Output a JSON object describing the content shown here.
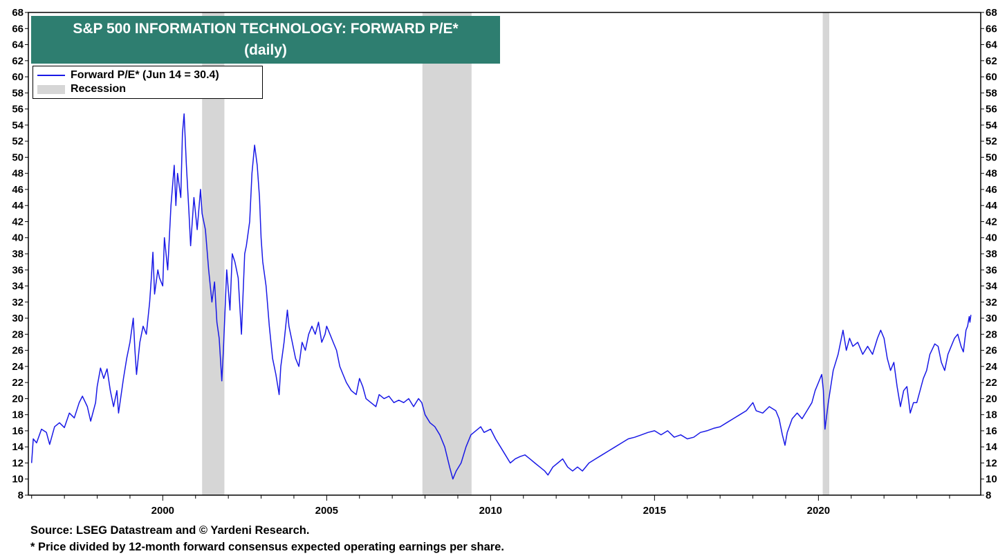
{
  "colors": {
    "series": "#1818e6",
    "recession": "#d6d6d6",
    "title_bg": "#2e7e70",
    "title_text": "#ffffff"
  },
  "title": {
    "line1": "S&P 500 INFORMATION TECHNOLOGY: FORWARD P/E*",
    "line2": "(daily)"
  },
  "legend": {
    "series_label": "Forward P/E* (Jun 14 = 30.4)",
    "recession_label": "Recession"
  },
  "footer": {
    "source": "Source: LSEG Datastream and © Yardeni Research.",
    "note": "* Price divided by 12-month forward consensus expected operating earnings per share."
  },
  "chart_data": {
    "type": "line",
    "xlim": [
      1995.9,
      2024.95
    ],
    "ylim": [
      8,
      68
    ],
    "y_ticks": [
      8,
      10,
      12,
      14,
      16,
      18,
      20,
      22,
      24,
      26,
      28,
      30,
      32,
      34,
      36,
      38,
      40,
      42,
      44,
      46,
      48,
      50,
      52,
      54,
      56,
      58,
      60,
      62,
      64,
      66,
      68
    ],
    "x_tick_labels": [
      2000,
      2005,
      2010,
      2015,
      2020
    ],
    "grid": false,
    "legend_placement": "top-left",
    "recessions": [
      [
        2001.2,
        2001.88
      ],
      [
        2007.92,
        2009.42
      ],
      [
        2020.13,
        2020.33
      ]
    ],
    "series": [
      {
        "name": "Forward P/E* (Jun 14 = 30.4)",
        "points": [
          [
            1996.0,
            12.0
          ],
          [
            1996.05,
            15.0
          ],
          [
            1996.15,
            14.5
          ],
          [
            1996.3,
            16.2
          ],
          [
            1996.45,
            15.8
          ],
          [
            1996.55,
            14.3
          ],
          [
            1996.7,
            16.5
          ],
          [
            1996.85,
            17.0
          ],
          [
            1997.0,
            16.4
          ],
          [
            1997.15,
            18.2
          ],
          [
            1997.3,
            17.6
          ],
          [
            1997.45,
            19.5
          ],
          [
            1997.55,
            20.3
          ],
          [
            1997.7,
            19.0
          ],
          [
            1997.8,
            17.2
          ],
          [
            1997.95,
            19.5
          ],
          [
            1998.0,
            21.5
          ],
          [
            1998.1,
            23.8
          ],
          [
            1998.2,
            22.5
          ],
          [
            1998.3,
            23.7
          ],
          [
            1998.4,
            21.0
          ],
          [
            1998.5,
            19.0
          ],
          [
            1998.6,
            21.0
          ],
          [
            1998.65,
            18.2
          ],
          [
            1998.8,
            22.5
          ],
          [
            1998.9,
            25.0
          ],
          [
            1999.0,
            27.0
          ],
          [
            1999.1,
            30.0
          ],
          [
            1999.15,
            26.0
          ],
          [
            1999.2,
            23.0
          ],
          [
            1999.3,
            27.0
          ],
          [
            1999.4,
            29.0
          ],
          [
            1999.5,
            28.0
          ],
          [
            1999.6,
            32.0
          ],
          [
            1999.65,
            35.0
          ],
          [
            1999.7,
            38.2
          ],
          [
            1999.75,
            33.0
          ],
          [
            1999.85,
            36.0
          ],
          [
            1999.9,
            35.0
          ],
          [
            2000.0,
            34.0
          ],
          [
            2000.05,
            40.0
          ],
          [
            2000.15,
            36.0
          ],
          [
            2000.25,
            44.0
          ],
          [
            2000.35,
            49.0
          ],
          [
            2000.4,
            44.0
          ],
          [
            2000.45,
            48.0
          ],
          [
            2000.55,
            45.0
          ],
          [
            2000.6,
            53.0
          ],
          [
            2000.65,
            55.4
          ],
          [
            2000.72,
            49.0
          ],
          [
            2000.8,
            43.0
          ],
          [
            2000.85,
            39.0
          ],
          [
            2000.95,
            45.0
          ],
          [
            2001.05,
            41.0
          ],
          [
            2001.15,
            46.0
          ],
          [
            2001.2,
            43.0
          ],
          [
            2001.3,
            41.0
          ],
          [
            2001.4,
            36.0
          ],
          [
            2001.5,
            32.0
          ],
          [
            2001.58,
            34.5
          ],
          [
            2001.65,
            29.5
          ],
          [
            2001.72,
            27.5
          ],
          [
            2001.8,
            22.2
          ],
          [
            2001.85,
            26.0
          ],
          [
            2001.95,
            36.0
          ],
          [
            2002.05,
            31.0
          ],
          [
            2002.12,
            38.0
          ],
          [
            2002.2,
            37.0
          ],
          [
            2002.3,
            35.0
          ],
          [
            2002.4,
            28.0
          ],
          [
            2002.5,
            38.0
          ],
          [
            2002.55,
            39.0
          ],
          [
            2002.65,
            42.0
          ],
          [
            2002.72,
            48.0
          ],
          [
            2002.8,
            51.5
          ],
          [
            2002.88,
            49.0
          ],
          [
            2002.95,
            45.0
          ],
          [
            2003.0,
            40.0
          ],
          [
            2003.05,
            37.0
          ],
          [
            2003.15,
            34.0
          ],
          [
            2003.25,
            29.0
          ],
          [
            2003.35,
            25.0
          ],
          [
            2003.45,
            23.0
          ],
          [
            2003.55,
            20.5
          ],
          [
            2003.6,
            24.0
          ],
          [
            2003.7,
            27.0
          ],
          [
            2003.8,
            31.0
          ],
          [
            2003.85,
            29.0
          ],
          [
            2003.95,
            27.0
          ],
          [
            2004.05,
            25.0
          ],
          [
            2004.15,
            24.0
          ],
          [
            2004.25,
            27.0
          ],
          [
            2004.35,
            26.0
          ],
          [
            2004.45,
            28.0
          ],
          [
            2004.55,
            29.0
          ],
          [
            2004.65,
            28.0
          ],
          [
            2004.75,
            29.5
          ],
          [
            2004.85,
            27.0
          ],
          [
            2004.95,
            28.0
          ],
          [
            2005.0,
            29.0
          ],
          [
            2005.1,
            28.0
          ],
          [
            2005.2,
            27.0
          ],
          [
            2005.3,
            26.0
          ],
          [
            2005.4,
            24.0
          ],
          [
            2005.5,
            23.0
          ],
          [
            2005.6,
            22.0
          ],
          [
            2005.75,
            21.0
          ],
          [
            2005.9,
            20.5
          ],
          [
            2006.0,
            22.5
          ],
          [
            2006.1,
            21.5
          ],
          [
            2006.2,
            20.0
          ],
          [
            2006.35,
            19.5
          ],
          [
            2006.5,
            19.0
          ],
          [
            2006.6,
            20.5
          ],
          [
            2006.75,
            20.0
          ],
          [
            2006.9,
            20.3
          ],
          [
            2007.05,
            19.5
          ],
          [
            2007.2,
            19.8
          ],
          [
            2007.35,
            19.5
          ],
          [
            2007.5,
            20.0
          ],
          [
            2007.65,
            19.0
          ],
          [
            2007.8,
            20.0
          ],
          [
            2007.9,
            19.5
          ],
          [
            2008.0,
            18.0
          ],
          [
            2008.15,
            17.0
          ],
          [
            2008.3,
            16.5
          ],
          [
            2008.45,
            15.5
          ],
          [
            2008.6,
            14.0
          ],
          [
            2008.75,
            11.5
          ],
          [
            2008.85,
            10.0
          ],
          [
            2008.95,
            11.0
          ],
          [
            2009.1,
            12.0
          ],
          [
            2009.25,
            14.0
          ],
          [
            2009.4,
            15.5
          ],
          [
            2009.55,
            16.0
          ],
          [
            2009.7,
            16.5
          ],
          [
            2009.8,
            15.8
          ],
          [
            2010.0,
            16.2
          ],
          [
            2010.15,
            15.0
          ],
          [
            2010.3,
            14.0
          ],
          [
            2010.45,
            13.0
          ],
          [
            2010.6,
            12.0
          ],
          [
            2010.75,
            12.5
          ],
          [
            2010.9,
            12.8
          ],
          [
            2011.05,
            13.0
          ],
          [
            2011.2,
            12.5
          ],
          [
            2011.35,
            12.0
          ],
          [
            2011.5,
            11.5
          ],
          [
            2011.65,
            11.0
          ],
          [
            2011.75,
            10.5
          ],
          [
            2011.9,
            11.5
          ],
          [
            2012.05,
            12.0
          ],
          [
            2012.2,
            12.5
          ],
          [
            2012.35,
            11.5
          ],
          [
            2012.5,
            11.0
          ],
          [
            2012.65,
            11.5
          ],
          [
            2012.8,
            11.0
          ],
          [
            2013.0,
            12.0
          ],
          [
            2013.2,
            12.5
          ],
          [
            2013.4,
            13.0
          ],
          [
            2013.6,
            13.5
          ],
          [
            2013.8,
            14.0
          ],
          [
            2014.0,
            14.5
          ],
          [
            2014.2,
            15.0
          ],
          [
            2014.4,
            15.2
          ],
          [
            2014.6,
            15.5
          ],
          [
            2014.8,
            15.8
          ],
          [
            2015.0,
            16.0
          ],
          [
            2015.2,
            15.5
          ],
          [
            2015.4,
            16.0
          ],
          [
            2015.6,
            15.2
          ],
          [
            2015.8,
            15.5
          ],
          [
            2016.0,
            15.0
          ],
          [
            2016.2,
            15.2
          ],
          [
            2016.4,
            15.8
          ],
          [
            2016.6,
            16.0
          ],
          [
            2016.8,
            16.3
          ],
          [
            2017.0,
            16.5
          ],
          [
            2017.2,
            17.0
          ],
          [
            2017.4,
            17.5
          ],
          [
            2017.6,
            18.0
          ],
          [
            2017.8,
            18.5
          ],
          [
            2018.0,
            19.5
          ],
          [
            2018.1,
            18.5
          ],
          [
            2018.3,
            18.2
          ],
          [
            2018.5,
            19.0
          ],
          [
            2018.7,
            18.5
          ],
          [
            2018.8,
            17.5
          ],
          [
            2018.9,
            15.5
          ],
          [
            2018.98,
            14.2
          ],
          [
            2019.05,
            15.8
          ],
          [
            2019.2,
            17.5
          ],
          [
            2019.35,
            18.2
          ],
          [
            2019.5,
            17.5
          ],
          [
            2019.65,
            18.5
          ],
          [
            2019.8,
            19.5
          ],
          [
            2019.9,
            21.0
          ],
          [
            2020.0,
            22.0
          ],
          [
            2020.1,
            23.0
          ],
          [
            2020.15,
            21.0
          ],
          [
            2020.2,
            16.2
          ],
          [
            2020.3,
            19.5
          ],
          [
            2020.45,
            23.5
          ],
          [
            2020.6,
            25.5
          ],
          [
            2020.7,
            27.5
          ],
          [
            2020.75,
            28.5
          ],
          [
            2020.85,
            26.0
          ],
          [
            2020.95,
            27.5
          ],
          [
            2021.05,
            26.5
          ],
          [
            2021.2,
            27.0
          ],
          [
            2021.35,
            25.5
          ],
          [
            2021.5,
            26.5
          ],
          [
            2021.65,
            25.5
          ],
          [
            2021.8,
            27.5
          ],
          [
            2021.9,
            28.5
          ],
          [
            2022.0,
            27.5
          ],
          [
            2022.1,
            25.0
          ],
          [
            2022.2,
            23.5
          ],
          [
            2022.3,
            24.5
          ],
          [
            2022.4,
            21.5
          ],
          [
            2022.5,
            19.0
          ],
          [
            2022.6,
            21.0
          ],
          [
            2022.7,
            21.5
          ],
          [
            2022.8,
            18.2
          ],
          [
            2022.9,
            19.5
          ],
          [
            2023.0,
            19.5
          ],
          [
            2023.1,
            21.0
          ],
          [
            2023.2,
            22.5
          ],
          [
            2023.3,
            23.5
          ],
          [
            2023.4,
            25.5
          ],
          [
            2023.55,
            26.8
          ],
          [
            2023.65,
            26.5
          ],
          [
            2023.75,
            24.5
          ],
          [
            2023.85,
            23.5
          ],
          [
            2023.95,
            25.5
          ],
          [
            2024.05,
            26.5
          ],
          [
            2024.15,
            27.5
          ],
          [
            2024.25,
            28.0
          ],
          [
            2024.35,
            26.5
          ],
          [
            2024.42,
            25.8
          ],
          [
            2024.5,
            28.5
          ],
          [
            2024.55,
            29.0
          ],
          [
            2024.6,
            30.2
          ],
          [
            2024.62,
            29.5
          ],
          [
            2024.65,
            30.4
          ]
        ]
      }
    ]
  }
}
